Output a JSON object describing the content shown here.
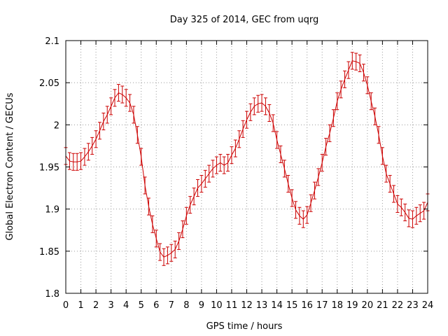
{
  "chart_data": {
    "type": "line",
    "title": "Day 325 of 2014, GEC from uqrg",
    "xlabel": "GPS time / hours",
    "ylabel": "Global Electron Content / GECUs",
    "xlim": [
      0,
      24
    ],
    "ylim": [
      1.8,
      2.1
    ],
    "x_ticks": [
      0,
      1,
      2,
      3,
      4,
      5,
      6,
      7,
      8,
      9,
      10,
      11,
      12,
      13,
      14,
      15,
      16,
      17,
      18,
      19,
      20,
      21,
      22,
      23,
      24
    ],
    "x_tick_labels": [
      "0",
      "1",
      "2",
      "3",
      "4",
      "5",
      "6",
      "7",
      "8",
      "9",
      "10",
      "11",
      "12",
      "13",
      "14",
      "15",
      "16",
      "17",
      "18",
      "19",
      "20",
      "21",
      "22",
      "23",
      "24"
    ],
    "y_ticks": [
      1.8,
      1.85,
      1.9,
      1.95,
      2.0,
      2.05,
      2.1
    ],
    "y_tick_labels": [
      "1.8",
      "1.85",
      "1.9",
      "1.95",
      "2",
      "2.05",
      "2.1"
    ],
    "grid": true,
    "series": [
      {
        "color": "#cc0000",
        "error_bars": true,
        "x": [
          0,
          0.25,
          0.5,
          0.75,
          1,
          1.25,
          1.5,
          1.75,
          2,
          2.25,
          2.5,
          2.75,
          3,
          3.25,
          3.5,
          3.75,
          4,
          4.25,
          4.5,
          4.75,
          5,
          5.25,
          5.5,
          5.75,
          6,
          6.25,
          6.5,
          6.75,
          7,
          7.25,
          7.5,
          7.75,
          8,
          8.25,
          8.5,
          8.75,
          9,
          9.25,
          9.5,
          9.75,
          10,
          10.25,
          10.5,
          10.75,
          11,
          11.25,
          11.5,
          11.75,
          12,
          12.25,
          12.5,
          12.75,
          13,
          13.25,
          13.5,
          13.75,
          14,
          14.25,
          14.5,
          14.75,
          15,
          15.25,
          15.5,
          15.75,
          16,
          16.25,
          16.5,
          16.75,
          17,
          17.25,
          17.5,
          17.75,
          18,
          18.25,
          18.5,
          18.75,
          19,
          19.25,
          19.5,
          19.75,
          20,
          20.25,
          20.5,
          20.75,
          21,
          21.25,
          21.5,
          21.75,
          22,
          22.25,
          22.5,
          22.75,
          23,
          23.25,
          23.5,
          23.75,
          24
        ],
        "y": [
          1.963,
          1.957,
          1.956,
          1.956,
          1.957,
          1.962,
          1.968,
          1.975,
          1.983,
          1.993,
          2.004,
          2.012,
          2.022,
          2.032,
          2.038,
          2.036,
          2.032,
          2.026,
          2.012,
          1.988,
          1.962,
          1.928,
          1.903,
          1.882,
          1.865,
          1.849,
          1.843,
          1.845,
          1.848,
          1.852,
          1.862,
          1.876,
          1.892,
          1.905,
          1.915,
          1.925,
          1.93,
          1.936,
          1.942,
          1.948,
          1.952,
          1.955,
          1.952,
          1.955,
          1.964,
          1.972,
          1.983,
          1.995,
          2.006,
          2.015,
          2.022,
          2.025,
          2.026,
          2.022,
          2.014,
          2.002,
          1.982,
          1.965,
          1.948,
          1.93,
          1.913,
          1.899,
          1.892,
          1.888,
          1.893,
          1.907,
          1.922,
          1.938,
          1.955,
          1.974,
          1.99,
          2.008,
          2.028,
          2.042,
          2.054,
          2.065,
          2.076,
          2.075,
          2.073,
          2.062,
          2.047,
          2.028,
          2.01,
          1.988,
          1.963,
          1.942,
          1.93,
          1.918,
          1.906,
          1.902,
          1.896,
          1.889,
          1.888,
          1.892,
          1.895,
          1.898,
          1.908
        ],
        "err": [
          0.01,
          0.01,
          0.01,
          0.01,
          0.01,
          0.01,
          0.01,
          0.01,
          0.01,
          0.01,
          0.01,
          0.01,
          0.01,
          0.01,
          0.01,
          0.01,
          0.01,
          0.01,
          0.01,
          0.01,
          0.01,
          0.01,
          0.01,
          0.01,
          0.01,
          0.01,
          0.01,
          0.01,
          0.01,
          0.01,
          0.01,
          0.01,
          0.01,
          0.01,
          0.01,
          0.01,
          0.01,
          0.01,
          0.01,
          0.01,
          0.01,
          0.01,
          0.01,
          0.01,
          0.01,
          0.01,
          0.01,
          0.01,
          0.01,
          0.01,
          0.01,
          0.01,
          0.01,
          0.01,
          0.01,
          0.01,
          0.01,
          0.01,
          0.01,
          0.01,
          0.01,
          0.01,
          0.01,
          0.01,
          0.01,
          0.01,
          0.01,
          0.01,
          0.01,
          0.01,
          0.01,
          0.01,
          0.01,
          0.01,
          0.01,
          0.01,
          0.01,
          0.01,
          0.01,
          0.01,
          0.01,
          0.01,
          0.01,
          0.01,
          0.01,
          0.01,
          0.01,
          0.01,
          0.01,
          0.01,
          0.01,
          0.01,
          0.01,
          0.01,
          0.01,
          0.01,
          0.01
        ]
      }
    ]
  }
}
